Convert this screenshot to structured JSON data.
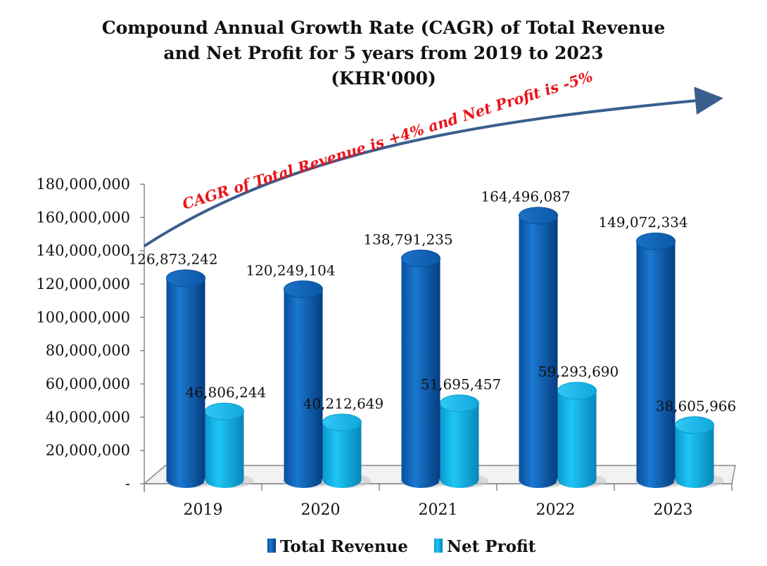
{
  "chart_data": {
    "type": "bar",
    "title": [
      "Compound Annual Growth Rate (CAGR) of Total Revenue",
      "and Net Profit for 5 years from 2019 to 2023",
      "(KHR'000)"
    ],
    "annotation": "CAGR of Total Revenue is +4% and Net Profit is -5%",
    "categories": [
      "2019",
      "2020",
      "2021",
      "2022",
      "2023"
    ],
    "series": [
      {
        "name": "Total Revenue",
        "color": "#0b5cb0",
        "values": [
          126873242,
          120249104,
          138791235,
          164496087,
          149072334
        ],
        "labels": [
          "126,873,242",
          "120,249,104",
          "138,791,235",
          "164,496,087",
          "149,072,334"
        ]
      },
      {
        "name": "Net Profit",
        "color": "#12b2e6",
        "values": [
          46806244,
          40212649,
          51695457,
          59293690,
          38605966
        ],
        "labels": [
          "46,806,244",
          "40,212,649",
          "51,695,457",
          "59,293,690",
          "38,605,966"
        ]
      }
    ],
    "ylim": [
      0,
      180000000
    ],
    "yticks": [
      "-",
      "20,000,000",
      "40,000,000",
      "60,000,000",
      "80,000,000",
      "100,000,000",
      "120,000,000",
      "140,000,000",
      "160,000,000",
      "180,000,000"
    ],
    "grid": false,
    "legend": "bottom",
    "style": "3d-cylinder"
  }
}
